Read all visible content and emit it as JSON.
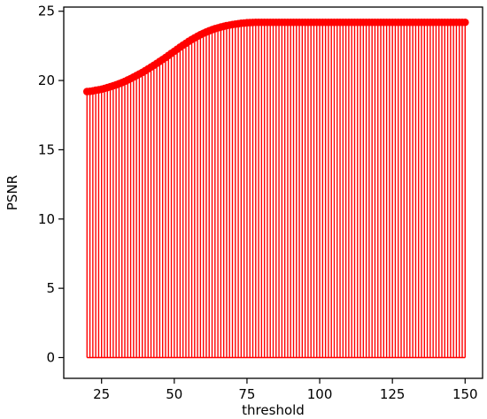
{
  "chart_data": {
    "type": "stem",
    "xlabel": "threshold",
    "ylabel": "PSNR",
    "xlim": [
      12,
      156
    ],
    "ylim": [
      -1.5,
      25.3
    ],
    "xticks": [
      25,
      50,
      75,
      100,
      125,
      150
    ],
    "yticks": [
      0,
      5,
      10,
      15,
      20,
      25
    ],
    "grid": false,
    "legend": "none",
    "stem_color": "#ff0000",
    "series": [
      {
        "x_start": 20,
        "x_end": 150,
        "x_step": 1,
        "values": [
          19.2,
          19.22,
          19.25,
          19.3,
          19.33,
          19.37,
          19.43,
          19.49,
          19.55,
          19.62,
          19.69,
          19.77,
          19.85,
          19.94,
          20.04,
          20.14,
          20.25,
          20.36,
          20.47,
          20.58,
          20.71,
          20.84,
          20.97,
          21.1,
          21.24,
          21.38,
          21.52,
          21.66,
          21.81,
          21.96,
          22.11,
          22.26,
          22.41,
          22.55,
          22.69,
          22.83,
          22.96,
          23.08,
          23.2,
          23.31,
          23.41,
          23.5,
          23.59,
          23.67,
          23.74,
          23.8,
          23.86,
          23.91,
          23.96,
          24.0,
          24.04,
          24.07,
          24.1,
          24.13,
          24.15,
          24.17,
          24.18,
          24.19,
          24.2,
          24.2,
          24.2,
          24.2,
          24.2,
          24.2,
          24.2,
          24.2,
          24.2,
          24.2,
          24.2,
          24.2,
          24.2,
          24.2,
          24.2,
          24.2,
          24.2,
          24.2,
          24.2,
          24.2,
          24.2,
          24.2,
          24.2,
          24.2,
          24.2,
          24.2,
          24.2,
          24.2,
          24.2,
          24.2,
          24.2,
          24.2,
          24.2,
          24.2,
          24.2,
          24.2,
          24.2,
          24.2,
          24.2,
          24.2,
          24.2,
          24.2,
          24.2,
          24.2,
          24.2,
          24.2,
          24.2,
          24.2,
          24.2,
          24.2,
          24.2,
          24.2,
          24.2,
          24.2,
          24.2,
          24.2,
          24.2,
          24.2,
          24.2,
          24.2,
          24.2,
          24.2,
          24.2,
          24.2,
          24.2,
          24.2,
          24.2,
          24.2,
          24.2,
          24.2,
          24.2,
          24.2,
          24.2
        ]
      }
    ]
  }
}
